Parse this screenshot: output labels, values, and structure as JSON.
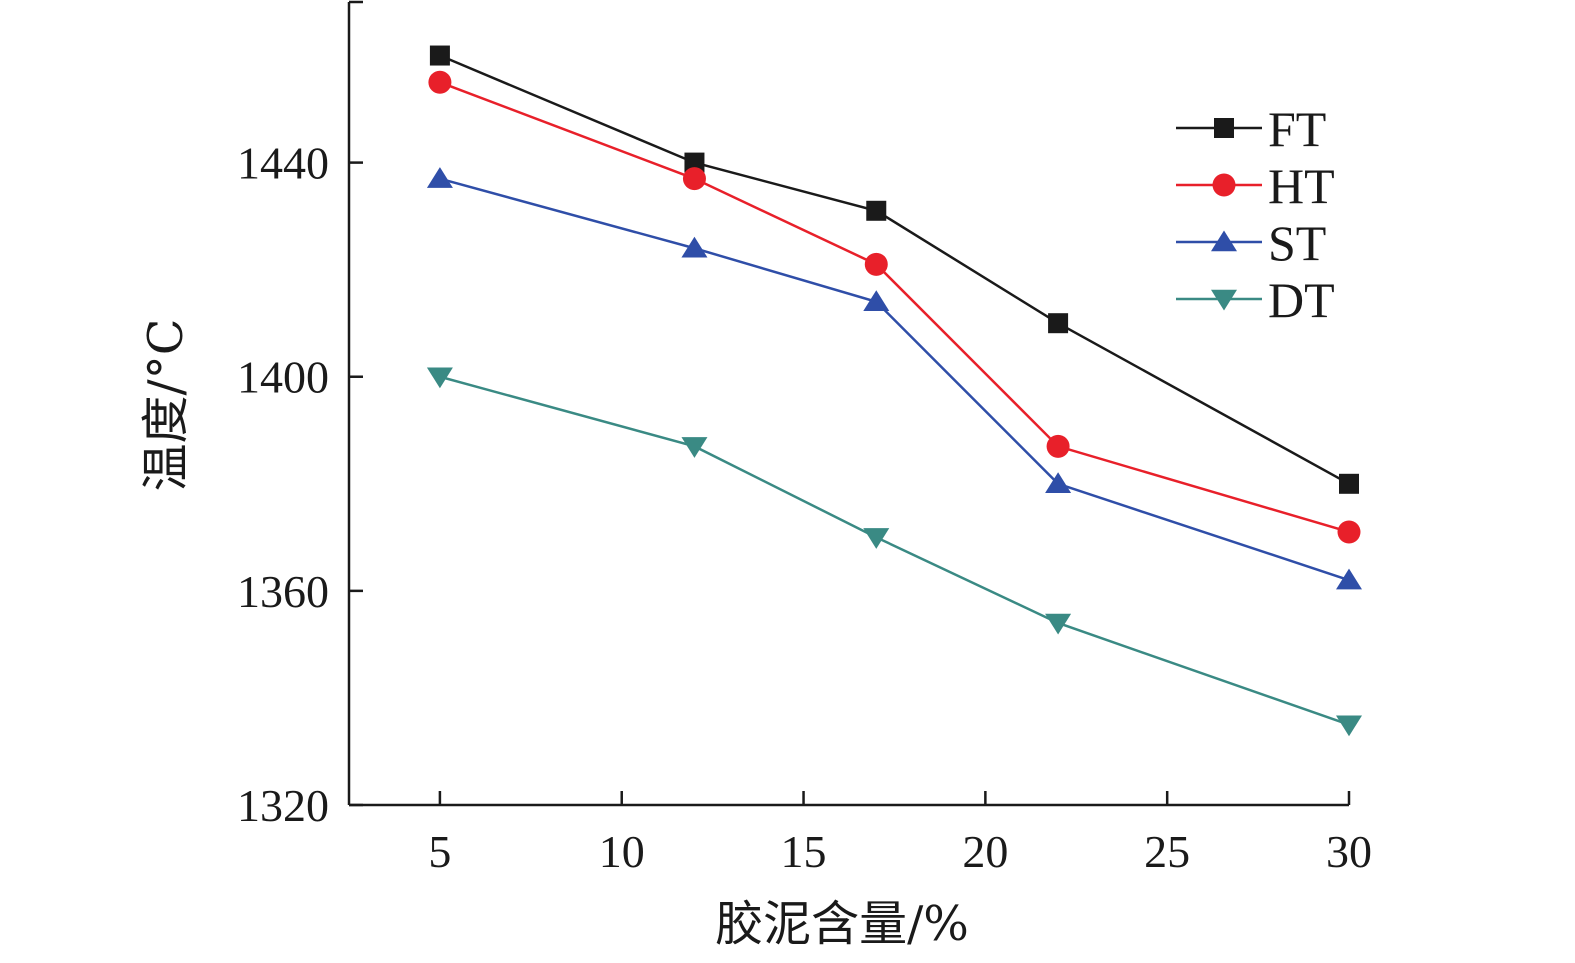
{
  "chart_data": {
    "type": "line",
    "xlabel": "胶泥含量/%",
    "ylabel": "温度/°C",
    "x": [
      5,
      12,
      17,
      22,
      30
    ],
    "xlim": [
      2.5,
      30
    ],
    "ylim": [
      1320,
      1470
    ],
    "x_ticks": [
      5,
      10,
      15,
      20,
      25,
      30
    ],
    "y_ticks": [
      1320,
      1360,
      1400,
      1440
    ],
    "grid": false,
    "legend_position": "top-right",
    "series": [
      {
        "name": "FT",
        "marker": "square",
        "color": "#1a1a1a",
        "values": [
          1460,
          1440,
          1431,
          1410,
          1380
        ]
      },
      {
        "name": "HT",
        "marker": "circle",
        "color": "#e8202a",
        "values": [
          1455,
          1437,
          1421,
          1387,
          1371
        ]
      },
      {
        "name": "ST",
        "marker": "triangle-up",
        "color": "#2f4ea8",
        "values": [
          1437,
          1424,
          1414,
          1380,
          1362
        ]
      },
      {
        "name": "DT",
        "marker": "triangle-down",
        "color": "#3a8a84",
        "values": [
          1400,
          1387,
          1370,
          1354,
          1335
        ]
      }
    ]
  }
}
